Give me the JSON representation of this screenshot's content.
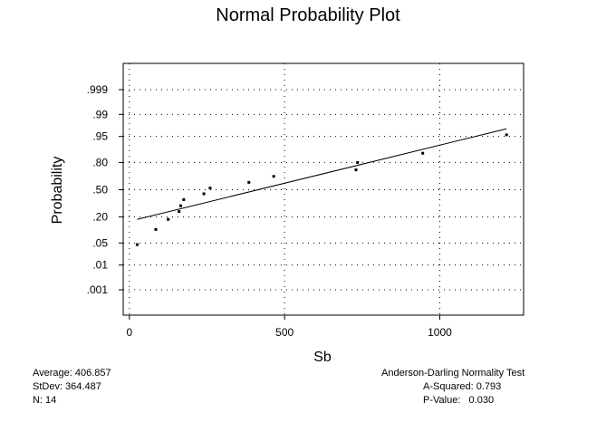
{
  "chart_data": {
    "type": "scatter",
    "title": "Normal Probability Plot",
    "xlabel": "Sb",
    "ylabel": "Probability",
    "xlim": [
      -20,
      1270
    ],
    "x_ticks": [
      0,
      500,
      1000
    ],
    "x_tick_labels": [
      "0",
      "500",
      "1000"
    ],
    "y_ticks": [
      0.001,
      0.01,
      0.05,
      0.2,
      0.5,
      0.8,
      0.95,
      0.99,
      0.999
    ],
    "y_tick_labels": [
      ".001",
      ".01",
      ".05",
      ".20",
      ".50",
      ".80",
      ".95",
      ".99",
      ".999"
    ],
    "y_scale": "normal-probability",
    "grid": "dotted",
    "points": [
      {
        "x": 25,
        "y": 0.045
      },
      {
        "x": 85,
        "y": 0.11
      },
      {
        "x": 125,
        "y": 0.18
      },
      {
        "x": 160,
        "y": 0.25
      },
      {
        "x": 165,
        "y": 0.31
      },
      {
        "x": 175,
        "y": 0.38
      },
      {
        "x": 240,
        "y": 0.45
      },
      {
        "x": 260,
        "y": 0.52
      },
      {
        "x": 385,
        "y": 0.59
      },
      {
        "x": 465,
        "y": 0.66
      },
      {
        "x": 730,
        "y": 0.73
      },
      {
        "x": 735,
        "y": 0.8
      },
      {
        "x": 945,
        "y": 0.87
      },
      {
        "x": 1215,
        "y": 0.955
      }
    ],
    "fit_line": {
      "x": [
        25,
        1215
      ],
      "y": [
        0.18,
        0.97
      ]
    }
  },
  "stats": {
    "average": "Average: 406.857",
    "stdev": "StDev: 364.487",
    "n": "N: 14"
  },
  "test": {
    "title": "Anderson-Darling Normality Test",
    "a_squared": "A-Squared: 0.793",
    "p_value": "P-Value:   0.030"
  }
}
